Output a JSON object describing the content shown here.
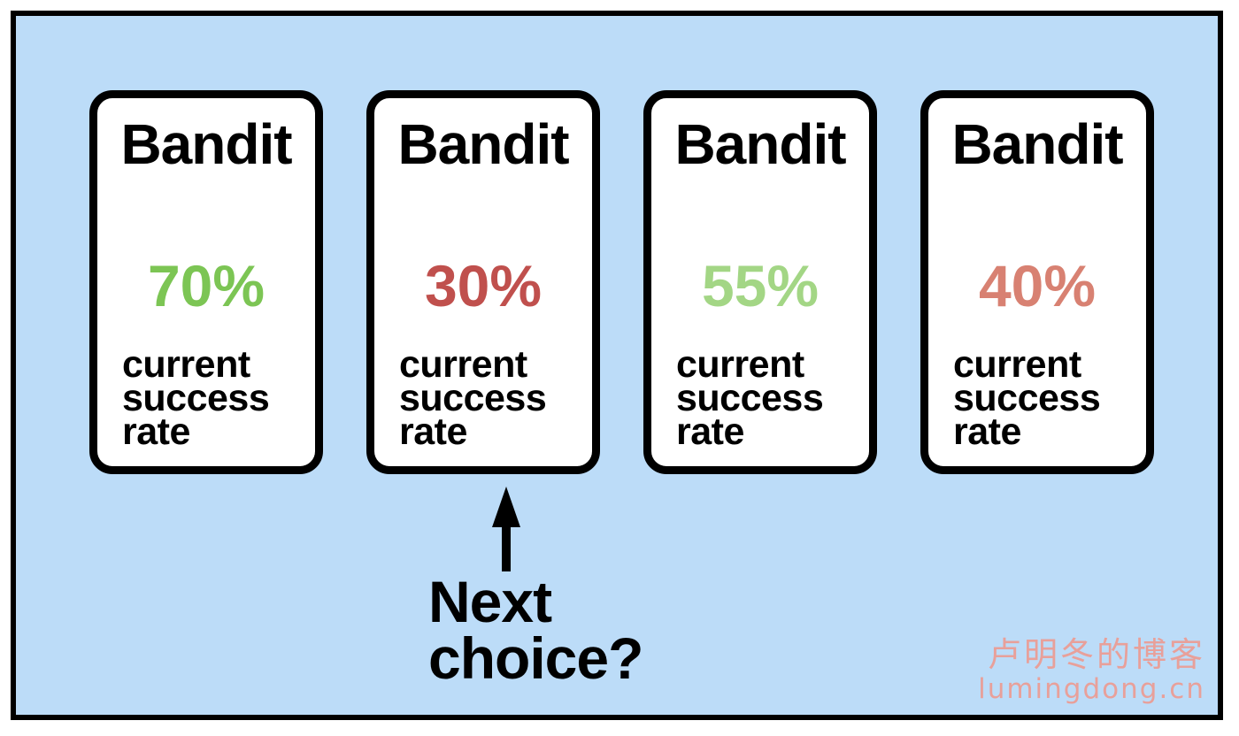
{
  "bandits": [
    {
      "title": "Bandit",
      "rate": "70%",
      "rate_color": "#7cc554",
      "caption": [
        "current",
        "success",
        "rate"
      ]
    },
    {
      "title": "Bandit",
      "rate": "30%",
      "rate_color": "#c0504d",
      "caption": [
        "current",
        "success",
        "rate"
      ]
    },
    {
      "title": "Bandit",
      "rate": "55%",
      "rate_color": "#a3d685",
      "caption": [
        "current",
        "success",
        "rate"
      ]
    },
    {
      "title": "Bandit",
      "rate": "40%",
      "rate_color": "#d88172",
      "caption": [
        "current",
        "success",
        "rate"
      ]
    }
  ],
  "pointer": {
    "target_index": 1,
    "label_lines": [
      "Next",
      "choice?"
    ],
    "icon": "up-arrow-icon"
  },
  "watermark": {
    "cn": "卢明冬的博客",
    "url": "lumingdong.cn",
    "color": "#e8a09a"
  },
  "colors": {
    "background": "#bcdcf8",
    "border": "#000000",
    "card": "#ffffff"
  }
}
